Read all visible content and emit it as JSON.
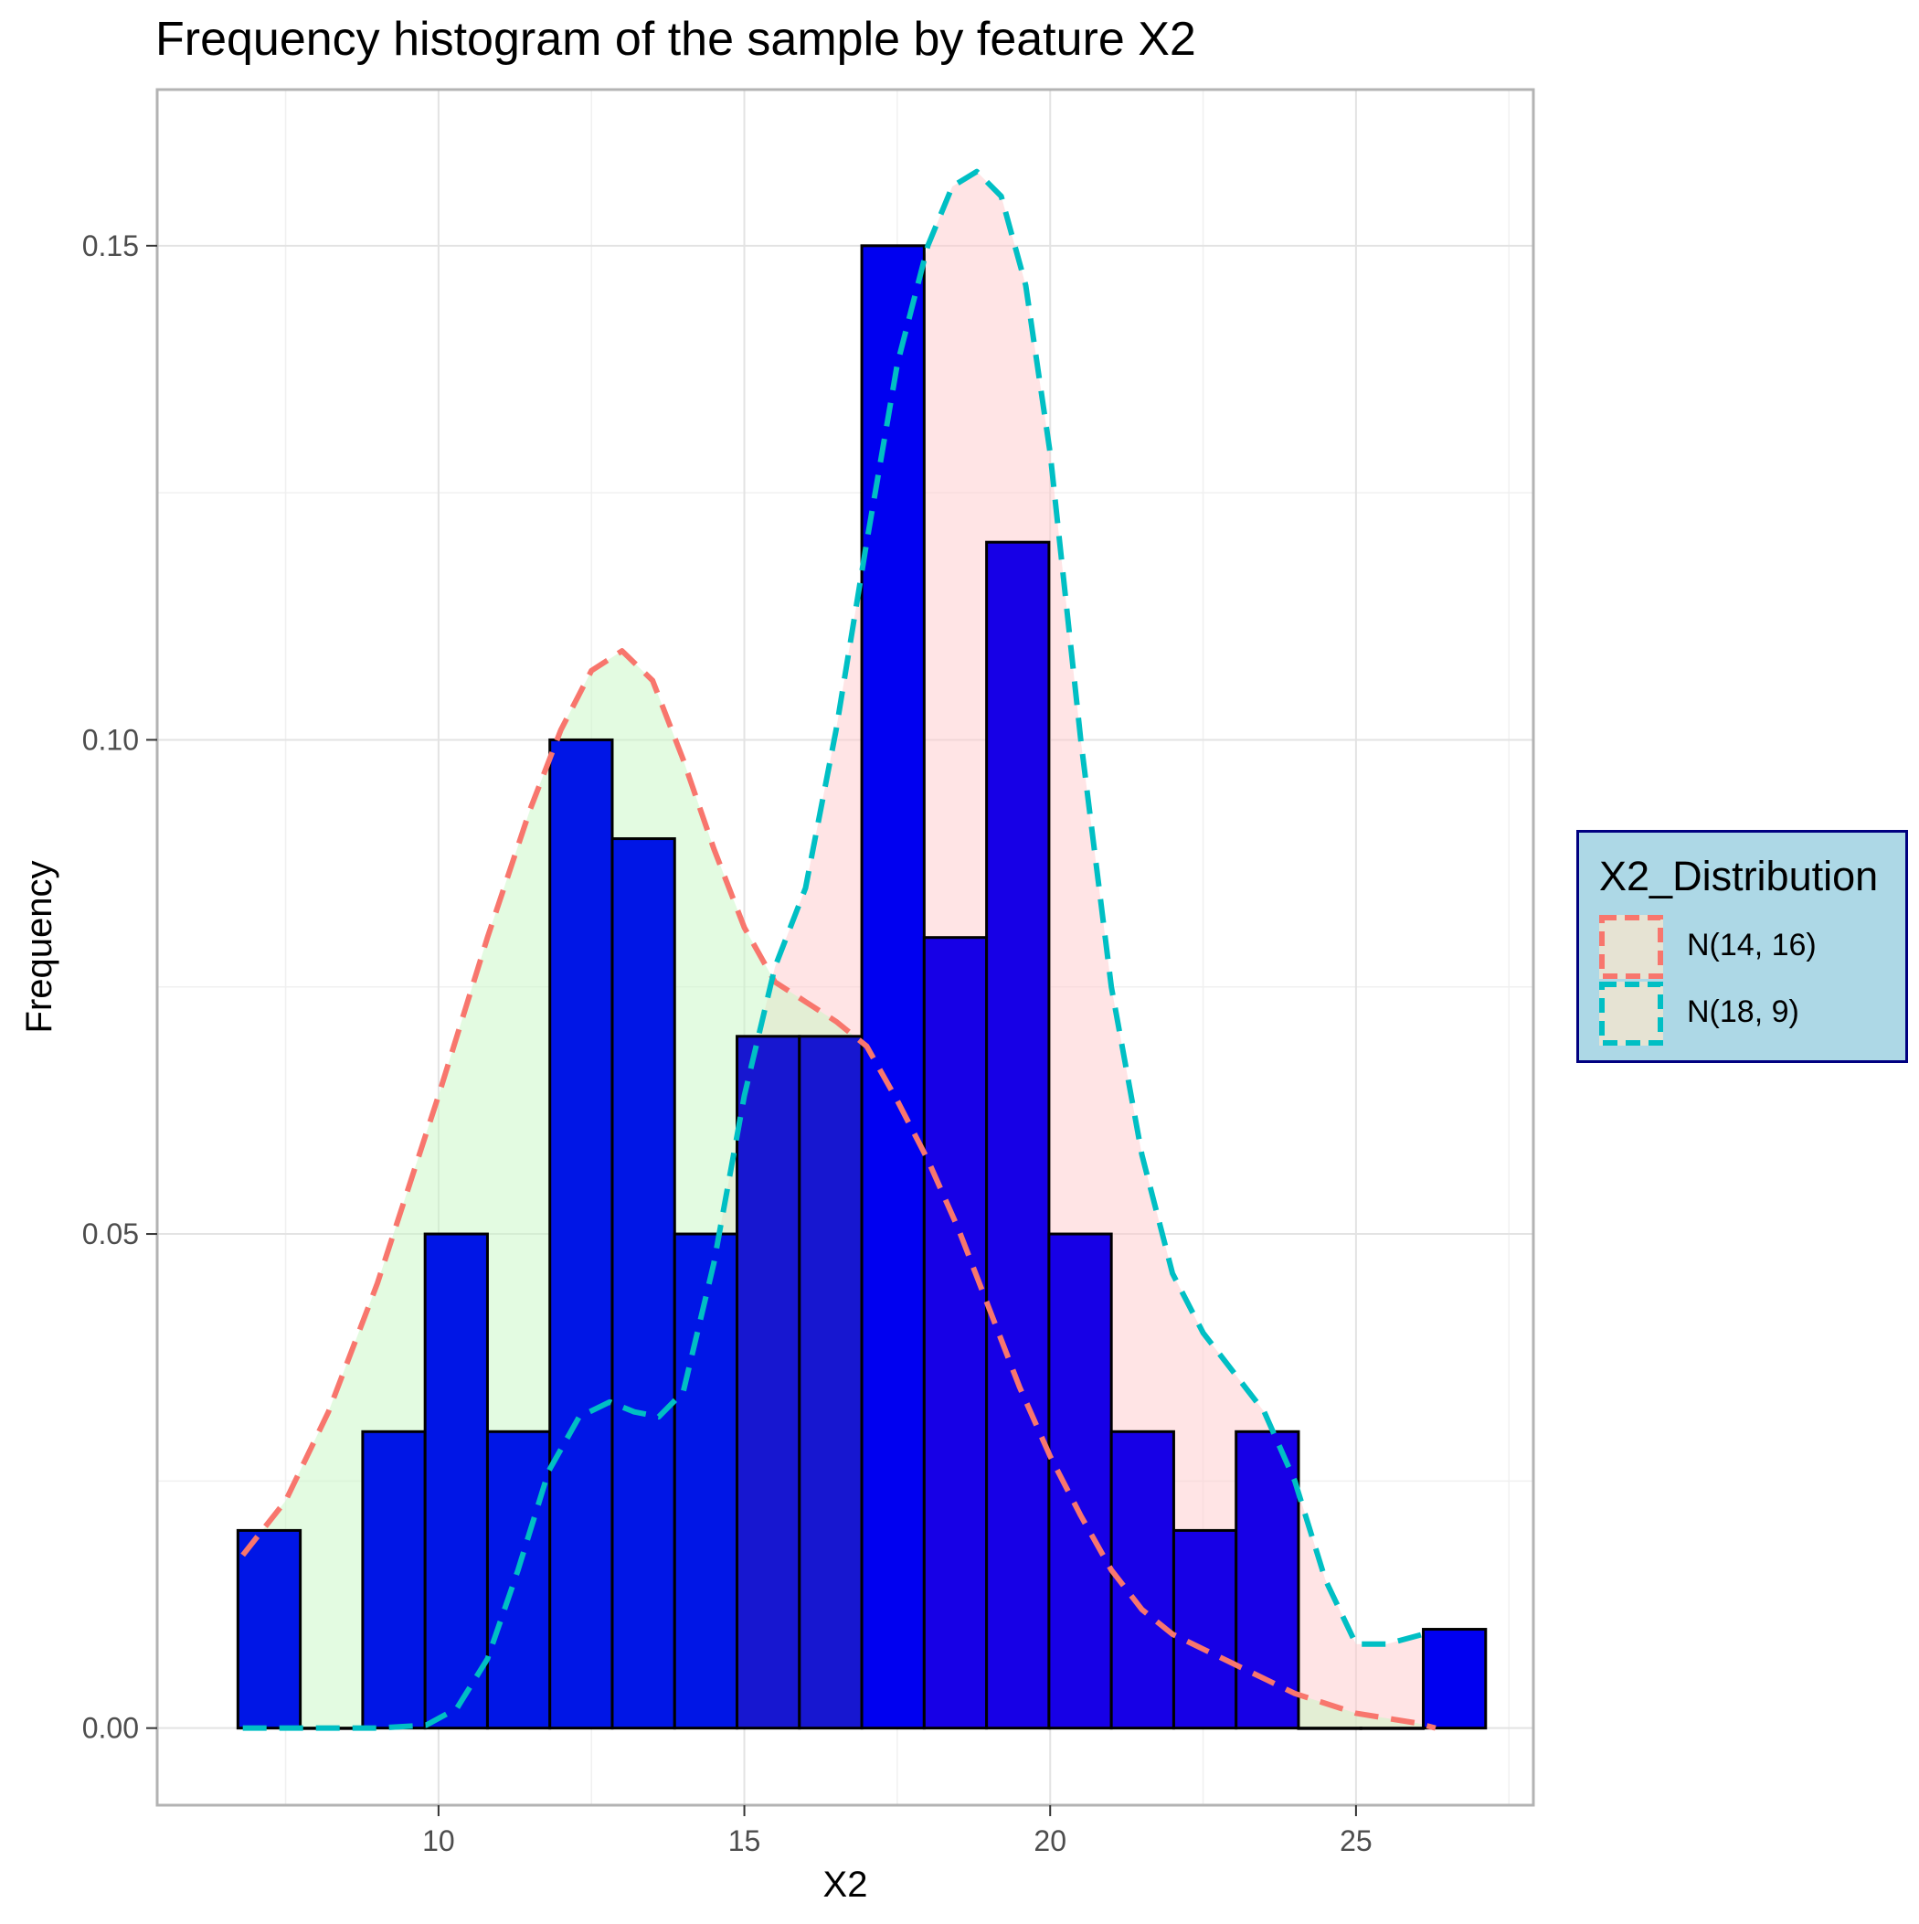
{
  "chart_data": {
    "type": "bar",
    "title": "Frequency histogram of the sample by feature X2",
    "xlabel": "X2",
    "ylabel": "Frequency",
    "xlim": [
      5.4,
      27.9
    ],
    "ylim": [
      -0.0078,
      0.1658
    ],
    "x_ticks": [
      10,
      15,
      20,
      25
    ],
    "x_tick_labels": [
      "10",
      "15",
      "20",
      "25"
    ],
    "y_ticks": [
      0.0,
      0.05,
      0.1,
      0.15
    ],
    "y_tick_labels": [
      "0.00",
      "0.05",
      "0.10",
      "0.15"
    ],
    "grid": true,
    "bins": [
      {
        "x0": 6.72,
        "x1": 7.74,
        "value": 0.02,
        "fill": "#0016e6"
      },
      {
        "x0": 7.74,
        "x1": 8.76,
        "value": 0.0,
        "fill": "#0016e6"
      },
      {
        "x0": 8.76,
        "x1": 9.78,
        "value": 0.03,
        "fill": "#0016e6"
      },
      {
        "x0": 9.78,
        "x1": 10.8,
        "value": 0.05,
        "fill": "#0016e6"
      },
      {
        "x0": 10.8,
        "x1": 11.82,
        "value": 0.03,
        "fill": "#0016e6"
      },
      {
        "x0": 11.82,
        "x1": 12.84,
        "value": 0.1,
        "fill": "#0016e6"
      },
      {
        "x0": 12.84,
        "x1": 13.86,
        "value": 0.09,
        "fill": "#0016e6"
      },
      {
        "x0": 13.86,
        "x1": 14.88,
        "value": 0.05,
        "fill": "#0016e6"
      },
      {
        "x0": 14.88,
        "x1": 15.9,
        "value": 0.07,
        "fill": "#1717d0"
      },
      {
        "x0": 15.9,
        "x1": 16.92,
        "value": 0.07,
        "fill": "#1717d0"
      },
      {
        "x0": 16.92,
        "x1": 17.94,
        "value": 0.15,
        "fill": "#0000f0"
      },
      {
        "x0": 17.94,
        "x1": 18.96,
        "value": 0.08,
        "fill": "#1700e6"
      },
      {
        "x0": 18.96,
        "x1": 19.98,
        "value": 0.12,
        "fill": "#1700e6"
      },
      {
        "x0": 19.98,
        "x1": 21.0,
        "value": 0.05,
        "fill": "#1700e6"
      },
      {
        "x0": 21.0,
        "x1": 22.02,
        "value": 0.03,
        "fill": "#1700e6"
      },
      {
        "x0": 22.02,
        "x1": 23.04,
        "value": 0.02,
        "fill": "#1700e6"
      },
      {
        "x0": 23.04,
        "x1": 24.06,
        "value": 0.03,
        "fill": "#1700e6"
      },
      {
        "x0": 24.06,
        "x1": 25.08,
        "value": 0.0,
        "fill": "#1700e6"
      },
      {
        "x0": 25.08,
        "x1": 26.1,
        "value": 0.0,
        "fill": "#1700e6"
      },
      {
        "x0": 26.1,
        "x1": 27.12,
        "value": 0.01,
        "fill": "#0000f0"
      }
    ],
    "series": [
      {
        "name": "N(14, 16)",
        "style": "dashed",
        "color": "#f8766d",
        "fill_color": "#c8f7c3",
        "x": [
          6.8,
          7.5,
          8.2,
          9.0,
          10.0,
          10.8,
          11.5,
          12.0,
          12.5,
          13.0,
          13.5,
          14.0,
          14.5,
          15.0,
          15.5,
          16.0,
          16.5,
          17.0,
          17.5,
          18.0,
          18.5,
          19.0,
          19.5,
          20.0,
          20.5,
          21.0,
          21.5,
          22.0,
          22.5,
          23.0,
          23.5,
          24.0,
          24.5,
          25.0,
          25.5,
          26.0,
          26.3
        ],
        "y": [
          0.0175,
          0.023,
          0.032,
          0.045,
          0.064,
          0.08,
          0.093,
          0.101,
          0.107,
          0.109,
          0.106,
          0.098,
          0.089,
          0.081,
          0.0755,
          0.0735,
          0.0715,
          0.069,
          0.0635,
          0.0575,
          0.0505,
          0.0425,
          0.0345,
          0.0275,
          0.0215,
          0.016,
          0.012,
          0.0095,
          0.008,
          0.0065,
          0.005,
          0.0035,
          0.0025,
          0.0015,
          0.001,
          0.0005,
          0.0
        ]
      },
      {
        "name": "N(18, 9)",
        "style": "dashed",
        "color": "#00bfc4",
        "fill_color": "#ffc9cc",
        "x": [
          6.8,
          8.0,
          9.0,
          9.8,
          10.3,
          10.8,
          11.3,
          11.8,
          12.3,
          12.8,
          13.2,
          13.6,
          14.0,
          14.5,
          15.0,
          15.5,
          16.0,
          16.5,
          17.0,
          17.5,
          18.0,
          18.4,
          18.8,
          19.2,
          19.6,
          20.0,
          20.5,
          21.0,
          21.5,
          22.0,
          22.5,
          23.0,
          23.5,
          24.0,
          24.5,
          25.0,
          25.5,
          26.1
        ],
        "y": [
          0.0,
          0.0,
          0.0,
          0.0003,
          0.002,
          0.007,
          0.016,
          0.026,
          0.0315,
          0.033,
          0.032,
          0.0315,
          0.034,
          0.047,
          0.064,
          0.077,
          0.085,
          0.101,
          0.12,
          0.138,
          0.15,
          0.156,
          0.1575,
          0.155,
          0.146,
          0.129,
          0.1,
          0.075,
          0.058,
          0.046,
          0.04,
          0.036,
          0.032,
          0.025,
          0.015,
          0.0085,
          0.0085,
          0.0095
        ]
      }
    ],
    "legend": {
      "title": "X2_Distribution",
      "position": "right",
      "background": "#add8e6",
      "border": "#000080",
      "entries": [
        "N(14, 16)",
        "N(18, 9)"
      ]
    }
  }
}
